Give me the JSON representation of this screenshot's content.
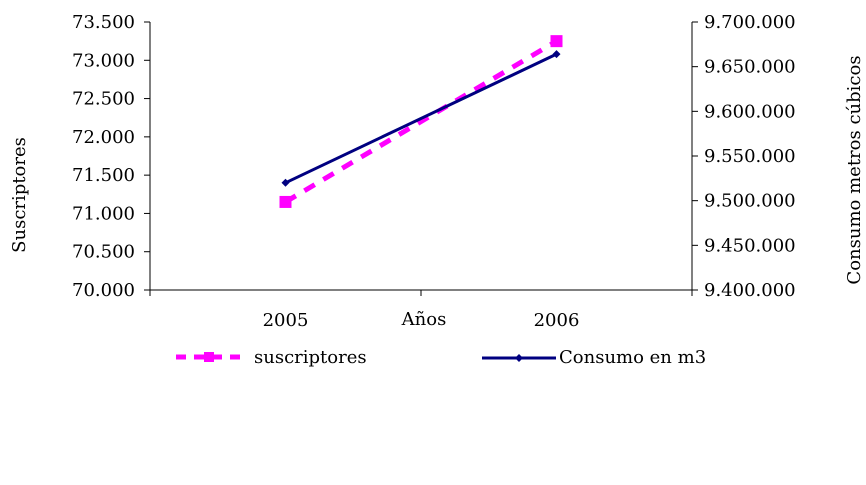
{
  "chart_data": {
    "type": "line",
    "title": "",
    "xlabel": "Años",
    "ylabel_left": "Suscriptores",
    "ylabel_right": "Consumo metros cúbicos",
    "categories": [
      "2005",
      "2006"
    ],
    "y_left": {
      "lim": [
        70000,
        73500
      ],
      "ticks": [
        70000,
        70500,
        71000,
        71500,
        72000,
        72500,
        73000,
        73500
      ],
      "tick_labels": [
        "70.000",
        "70.500",
        "71.000",
        "71.500",
        "72.000",
        "72.500",
        "73.000",
        "73.500"
      ]
    },
    "y_right": {
      "lim": [
        9400000,
        9700000
      ],
      "ticks": [
        9400000,
        9450000,
        9500000,
        9550000,
        9600000,
        9650000,
        9700000
      ],
      "tick_labels": [
        "9.400.000",
        "9.450.000",
        "9.500.000",
        "9.550.000",
        "9.600.000",
        "9.650.000",
        "9.700.000"
      ]
    },
    "series": [
      {
        "name": "suscriptores",
        "axis": "left",
        "values": [
          71150,
          73250
        ],
        "color": "#ff00ff",
        "style": "dashed",
        "marker": "square"
      },
      {
        "name": "Consumo en m3",
        "axis": "right",
        "values": [
          9520000,
          9664000
        ],
        "color": "#000080",
        "style": "solid",
        "marker": "diamond"
      }
    ],
    "grid": false,
    "legend_position": "bottom"
  }
}
